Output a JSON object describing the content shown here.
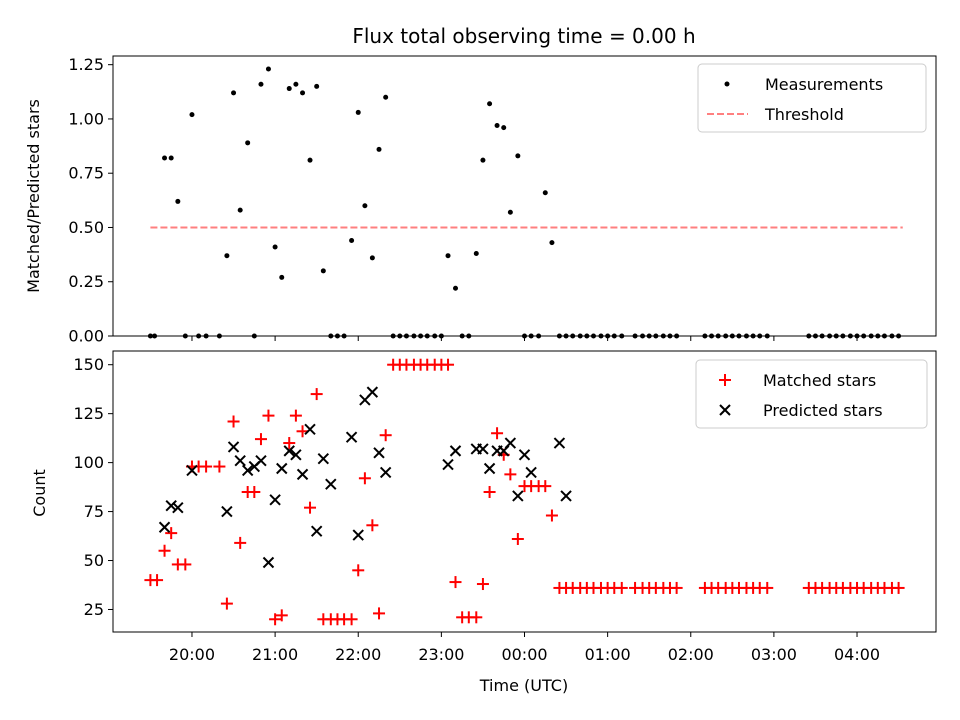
{
  "chart_data": {
    "type": "scatter",
    "title": "Flux total observing time = 0.00 h",
    "xlabel": "Time (UTC)",
    "x_unit": "hours since 00:00 UTC",
    "xlim": [
      -4.95,
      4.95
    ],
    "x_ticks": [
      {
        "value": -4,
        "label": "20:00"
      },
      {
        "value": -3,
        "label": "21:00"
      },
      {
        "value": -2,
        "label": "22:00"
      },
      {
        "value": -1,
        "label": "23:00"
      },
      {
        "value": 0,
        "label": "00:00"
      },
      {
        "value": 1,
        "label": "01:00"
      },
      {
        "value": 2,
        "label": "02:00"
      },
      {
        "value": 3,
        "label": "03:00"
      },
      {
        "value": 4,
        "label": "04:00"
      }
    ],
    "panels": [
      {
        "ylabel": "Matched/Predicted stars",
        "ylim": [
          0,
          1.29
        ],
        "y_ticks": [
          "0.00",
          "0.25",
          "0.50",
          "0.75",
          "1.00",
          "1.25"
        ],
        "threshold": {
          "name": "Threshold",
          "value": 0.5,
          "x_range": [
            -4.5,
            4.55
          ],
          "color": "#ff7f7f"
        },
        "legend": [
          "Measurements",
          "Threshold"
        ],
        "series": [
          {
            "name": "Measurements",
            "color": "#000000",
            "x": [
              -4.5,
              -4.45,
              -4.33,
              -4.25,
              -4.17,
              -4.08,
              -4.0,
              -3.92,
              -3.83,
              -3.67,
              -3.58,
              -3.5,
              -3.42,
              -3.33,
              -3.25,
              -3.17,
              -3.08,
              -3.0,
              -2.92,
              -2.83,
              -2.75,
              -2.67,
              -2.58,
              -2.5,
              -2.42,
              -2.33,
              -2.25,
              -2.17,
              -2.08,
              -2.0,
              -1.92,
              -1.83,
              -1.75,
              -1.67,
              -1.58,
              -1.5,
              -1.42,
              -1.33,
              -1.25,
              -1.17,
              -1.08,
              -1.0,
              -0.92,
              -0.83,
              -0.75,
              -0.67,
              -0.58,
              -0.5,
              -0.42,
              -0.33,
              -0.25,
              -0.17,
              -0.08,
              0.0,
              0.08,
              0.17,
              0.25,
              0.33,
              0.42,
              0.5,
              0.58,
              0.67,
              0.75,
              0.83,
              0.92,
              1.0,
              1.08,
              1.17,
              1.33,
              1.42,
              1.5,
              1.58,
              1.67,
              1.75,
              1.83,
              2.17,
              2.25,
              2.33,
              2.42,
              2.5,
              2.58,
              2.67,
              2.75,
              2.83,
              2.92,
              3.42,
              3.5,
              3.58,
              3.67,
              3.75,
              3.83,
              3.92,
              4.0,
              4.08,
              4.17,
              4.25,
              4.33,
              4.42,
              4.5
            ],
            "y": [
              0,
              0,
              0.82,
              0.82,
              0.62,
              0,
              1.02,
              0,
              0,
              0,
              0.37,
              1.12,
              0.58,
              0.89,
              0,
              1.16,
              1.23,
              0.41,
              0.27,
              1.14,
              1.16,
              1.12,
              0.81,
              1.15,
              0.3,
              0,
              0,
              0,
              0.44,
              1.03,
              0.6,
              0.36,
              0.86,
              1.1,
              0,
              0,
              0,
              0,
              0,
              0,
              0,
              0,
              0.37,
              0.22,
              0,
              0,
              0.38,
              0.81,
              1.07,
              0.97,
              0.96,
              0.57,
              0.83,
              0,
              0,
              0,
              0.66,
              0.43,
              0,
              0,
              0,
              0,
              0,
              0,
              0,
              0,
              0,
              0,
              0,
              0,
              0,
              0,
              0,
              0,
              0,
              0,
              0,
              0,
              0,
              0,
              0,
              0,
              0,
              0,
              0,
              0,
              0,
              0,
              0,
              0,
              0,
              0,
              0,
              0,
              0,
              0,
              0,
              0,
              0
            ]
          }
        ]
      },
      {
        "ylabel": "Count",
        "ylim": [
          13.5,
          157
        ],
        "y_ticks": [
          "25",
          "50",
          "75",
          "100",
          "125",
          "150"
        ],
        "legend": [
          "Matched stars",
          "Predicted stars"
        ],
        "series": [
          {
            "name": "Matched stars",
            "marker": "+",
            "color": "#ff0000",
            "x": [
              -4.5,
              -4.42,
              -4.33,
              -4.25,
              -4.17,
              -4.08,
              -4.0,
              -3.92,
              -3.83,
              -3.67,
              -3.58,
              -3.5,
              -3.42,
              -3.33,
              -3.25,
              -3.17,
              -3.08,
              -3.0,
              -2.92,
              -2.83,
              -2.75,
              -2.67,
              -2.58,
              -2.5,
              -2.42,
              -2.33,
              -2.25,
              -2.17,
              -2.08,
              -2.0,
              -1.92,
              -1.83,
              -1.75,
              -1.67,
              -1.58,
              -1.5,
              -1.42,
              -1.33,
              -1.25,
              -1.17,
              -1.08,
              -1.0,
              -0.92,
              -0.83,
              -0.75,
              -0.67,
              -0.58,
              -0.5,
              -0.42,
              -0.33,
              -0.25,
              -0.17,
              -0.08,
              0.0,
              0.08,
              0.17,
              0.25,
              0.33,
              0.42,
              0.5,
              0.58,
              0.67,
              0.75,
              0.83,
              0.92,
              1.0,
              1.08,
              1.17,
              1.33,
              1.42,
              1.5,
              1.58,
              1.67,
              1.75,
              1.83,
              2.17,
              2.25,
              2.33,
              2.42,
              2.5,
              2.58,
              2.67,
              2.75,
              2.83,
              2.92,
              3.42,
              3.5,
              3.58,
              3.67,
              3.75,
              3.83,
              3.92,
              4.0,
              4.08,
              4.17,
              4.25,
              4.33,
              4.42,
              4.5
            ],
            "y": [
              40,
              40,
              55,
              64,
              48,
              48,
              98,
              98,
              98,
              98,
              28,
              121,
              59,
              85,
              85,
              112,
              124,
              20,
              22,
              110,
              124,
              116,
              77,
              135,
              20,
              20,
              20,
              20,
              20,
              45,
              92,
              68,
              23,
              114,
              150,
              150,
              150,
              150,
              150,
              150,
              150,
              150,
              150,
              39,
              21,
              21,
              21,
              38,
              85,
              115,
              104,
              94,
              61,
              88,
              88,
              88,
              88,
              73,
              36,
              36,
              36,
              36,
              36,
              36,
              36,
              36,
              36,
              36,
              36,
              36,
              36,
              36,
              36,
              36,
              36,
              36,
              36,
              36,
              36,
              36,
              36,
              36,
              36,
              36,
              36,
              36,
              36,
              36,
              36,
              36,
              36,
              36,
              36,
              36,
              36,
              36,
              36,
              36,
              36
            ]
          },
          {
            "name": "Predicted stars",
            "marker": "x",
            "color": "#000000",
            "x": [
              -4.33,
              -4.25,
              -4.17,
              -4.0,
              -3.58,
              -3.5,
              -3.42,
              -3.33,
              -3.25,
              -3.17,
              -3.08,
              -3.0,
              -2.92,
              -2.83,
              -2.75,
              -2.67,
              -2.58,
              -2.5,
              -2.42,
              -2.33,
              -2.08,
              -2.0,
              -1.92,
              -1.83,
              -1.75,
              -1.67,
              -0.92,
              -0.83,
              -0.58,
              -0.5,
              -0.42,
              -0.33,
              -0.25,
              -0.17,
              -0.08,
              0.0,
              0.08,
              0.42,
              0.5
            ],
            "y": [
              67,
              78,
              77,
              96,
              75,
              108,
              101,
              96,
              98,
              101,
              49,
              81,
              97,
              106,
              104,
              94,
              117,
              65,
              102,
              89,
              113,
              63,
              132,
              136,
              105,
              95,
              99,
              106,
              107,
              107,
              97,
              106,
              106,
              110,
              83,
              104,
              95,
              110,
              83
            ]
          }
        ]
      }
    ]
  }
}
